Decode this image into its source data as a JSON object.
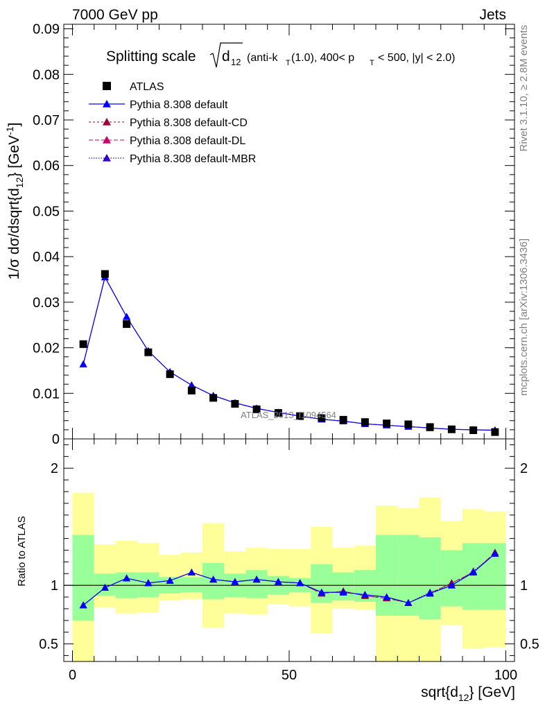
{
  "header": {
    "left": "7000 GeV pp",
    "right": "Jets"
  },
  "side": {
    "rivet": "Rivet 3.1.10, ≥ 2.8M events",
    "mcplots": "mcplots.cern.ch [arXiv:1306.3436]"
  },
  "watermark": "ATLAS_2013_I1094564",
  "colors": {
    "data": "#000000",
    "default": "#0000ff",
    "cd": "#990033",
    "dl": "#cc0066",
    "mbr": "#3300cc",
    "band_inner": "#99ff99",
    "band_outer": "#ffff99"
  },
  "chart_data": [
    {
      "type": "scatter",
      "title": "Splitting scale √d12 (anti-kT(1.0), 400< pT < 500, |y| < 2.0)",
      "ylabel": "1/σ dσ/dsqrt{d12} [GeV⁻¹]",
      "xlim": [
        -2,
        102
      ],
      "ylim": [
        0,
        0.091
      ],
      "yticks": [
        0,
        0.01,
        0.02,
        0.03,
        0.04,
        0.05,
        0.06,
        0.07,
        0.08,
        0.09
      ],
      "ytick_labels": [
        "0",
        "0.01",
        "0.02",
        "0.03",
        "0.04",
        "0.05",
        "0.06",
        "0.07",
        "0.08",
        "0.09"
      ],
      "x": [
        2.5,
        7.5,
        12.5,
        17.5,
        22.5,
        27.5,
        32.5,
        37.5,
        42.5,
        47.5,
        52.5,
        57.5,
        62.5,
        67.5,
        72.5,
        77.5,
        82.5,
        87.5,
        92.5,
        97.5
      ],
      "series": [
        {
          "name": "ATLAS",
          "values": [
            0.0208,
            0.0362,
            0.0252,
            0.019,
            0.0142,
            0.0106,
            0.009,
            0.0077,
            0.0065,
            0.0057,
            0.005,
            0.0046,
            0.0042,
            0.0037,
            0.0034,
            0.0032,
            0.0026,
            0.0021,
            0.0019,
            0.0015
          ]
        },
        {
          "name": "Pythia 8.308 default",
          "values": [
            0.0164,
            0.0355,
            0.0268,
            0.0193,
            0.0147,
            0.0118,
            0.0095,
            0.0079,
            0.0067,
            0.0058,
            0.005,
            0.0043,
            0.0039,
            0.0033,
            0.003,
            0.0027,
            0.0024,
            0.0021,
            0.002,
            0.0019
          ]
        },
        {
          "name": "Pythia 8.308 default-CD",
          "values": [
            0.0164,
            0.0355,
            0.0268,
            0.0193,
            0.0147,
            0.0118,
            0.0095,
            0.0079,
            0.0067,
            0.0058,
            0.005,
            0.0043,
            0.0039,
            0.0033,
            0.003,
            0.0027,
            0.0024,
            0.0021,
            0.002,
            0.0019
          ]
        },
        {
          "name": "Pythia 8.308 default-DL",
          "values": [
            0.0164,
            0.0355,
            0.0268,
            0.0193,
            0.0147,
            0.0118,
            0.0095,
            0.0079,
            0.0067,
            0.0058,
            0.005,
            0.0043,
            0.0039,
            0.0033,
            0.003,
            0.0027,
            0.0024,
            0.0021,
            0.002,
            0.0019
          ]
        },
        {
          "name": "Pythia 8.308 default-MBR",
          "values": [
            0.0164,
            0.0355,
            0.0268,
            0.0193,
            0.0147,
            0.0118,
            0.0095,
            0.0079,
            0.0067,
            0.0058,
            0.005,
            0.0043,
            0.0039,
            0.0033,
            0.003,
            0.0027,
            0.0024,
            0.0021,
            0.002,
            0.0019
          ]
        }
      ]
    },
    {
      "type": "line",
      "ylabel": "Ratio to ATLAS",
      "xlabel": "sqrt{d12} [GeV]",
      "xlim": [
        -2,
        102
      ],
      "ylim": [
        0.35,
        2.25
      ],
      "yticks": [
        0.5,
        1,
        2
      ],
      "ytick_labels": [
        "0.5",
        "1",
        "2"
      ],
      "xticks": [
        0,
        50,
        100
      ],
      "xtick_labels": [
        "0",
        "50",
        "100"
      ],
      "x_edges": [
        0,
        5,
        10,
        15,
        20,
        25,
        30,
        35,
        40,
        45,
        50,
        55,
        60,
        65,
        70,
        75,
        80,
        85,
        90,
        95,
        100
      ],
      "band_inner": {
        "lo": [
          0.7,
          0.91,
          0.89,
          0.9,
          0.93,
          0.94,
          0.88,
          0.9,
          0.89,
          0.92,
          0.94,
          0.85,
          0.87,
          0.86,
          0.74,
          0.74,
          0.71,
          0.82,
          0.79,
          0.79
        ],
        "hi": [
          1.43,
          1.1,
          1.11,
          1.11,
          1.07,
          1.07,
          1.19,
          1.1,
          1.13,
          1.08,
          1.06,
          1.18,
          1.11,
          1.13,
          1.43,
          1.43,
          1.41,
          1.3,
          1.36,
          1.36
        ]
      },
      "band_outer": {
        "lo": [
          0.35,
          0.81,
          0.76,
          0.77,
          0.87,
          0.88,
          0.64,
          0.76,
          0.75,
          0.84,
          0.82,
          0.59,
          0.8,
          0.79,
          0.35,
          0.35,
          0.35,
          0.66,
          0.46,
          0.47
        ]
      },
      "band_outer_hi": [
        1.79,
        1.35,
        1.38,
        1.36,
        1.26,
        1.28,
        1.53,
        1.29,
        1.32,
        1.31,
        1.31,
        1.5,
        1.32,
        1.34,
        1.68,
        1.66,
        1.75,
        1.55,
        1.65,
        1.63
      ],
      "series": [
        {
          "name": "Pythia 8.308 default",
          "values": [
            0.83,
            0.98,
            1.06,
            1.02,
            1.04,
            1.11,
            1.05,
            1.03,
            1.05,
            1.03,
            1.02,
            0.94,
            0.94,
            0.92,
            0.9,
            0.85,
            0.93,
            1.0,
            1.11,
            1.27
          ]
        },
        {
          "name": "Pythia 8.308 default-CD",
          "values": [
            0.83,
            0.98,
            1.06,
            1.02,
            1.04,
            1.11,
            1.05,
            1.03,
            1.05,
            1.03,
            1.02,
            0.93,
            0.95,
            0.91,
            0.89,
            0.85,
            0.93,
            1.02,
            1.11,
            1.28
          ]
        },
        {
          "name": "Pythia 8.308 default-DL",
          "values": [
            0.83,
            0.98,
            1.06,
            1.02,
            1.04,
            1.11,
            1.05,
            1.03,
            1.05,
            1.03,
            1.02,
            0.93,
            0.95,
            0.91,
            0.89,
            0.85,
            0.93,
            1.02,
            1.11,
            1.28
          ]
        },
        {
          "name": "Pythia 8.308 default-MBR",
          "values": [
            0.83,
            0.98,
            1.06,
            1.02,
            1.04,
            1.11,
            1.05,
            1.03,
            1.05,
            1.03,
            1.02,
            0.94,
            0.94,
            0.92,
            0.9,
            0.85,
            0.94,
            1.0,
            1.12,
            1.27
          ]
        }
      ]
    }
  ],
  "title_parts": {
    "prefix": "Splitting scale",
    "var": "d",
    "var_sub": "12",
    "rest1": "(anti-k",
    "rest1_sub": "T",
    "rest2": "(1.0), 400< p",
    "rest2_sub": "T",
    "rest3": "< 500, |y| < 2.0)"
  },
  "legend": [
    "ATLAS",
    "Pythia 8.308 default",
    "Pythia 8.308 default-CD",
    "Pythia 8.308 default-DL",
    "Pythia 8.308 default-MBR"
  ],
  "xaxis_label": {
    "main": "sqrt{d",
    "sub": "12",
    "end": "} [GeV]"
  },
  "yaxis_label": {
    "p1": "1/σ dσ/dsqrt{d",
    "sub": "12",
    "p2": "} [GeV",
    "sup": "-1",
    "p3": "]"
  },
  "ratio_label": "Ratio to ATLAS"
}
